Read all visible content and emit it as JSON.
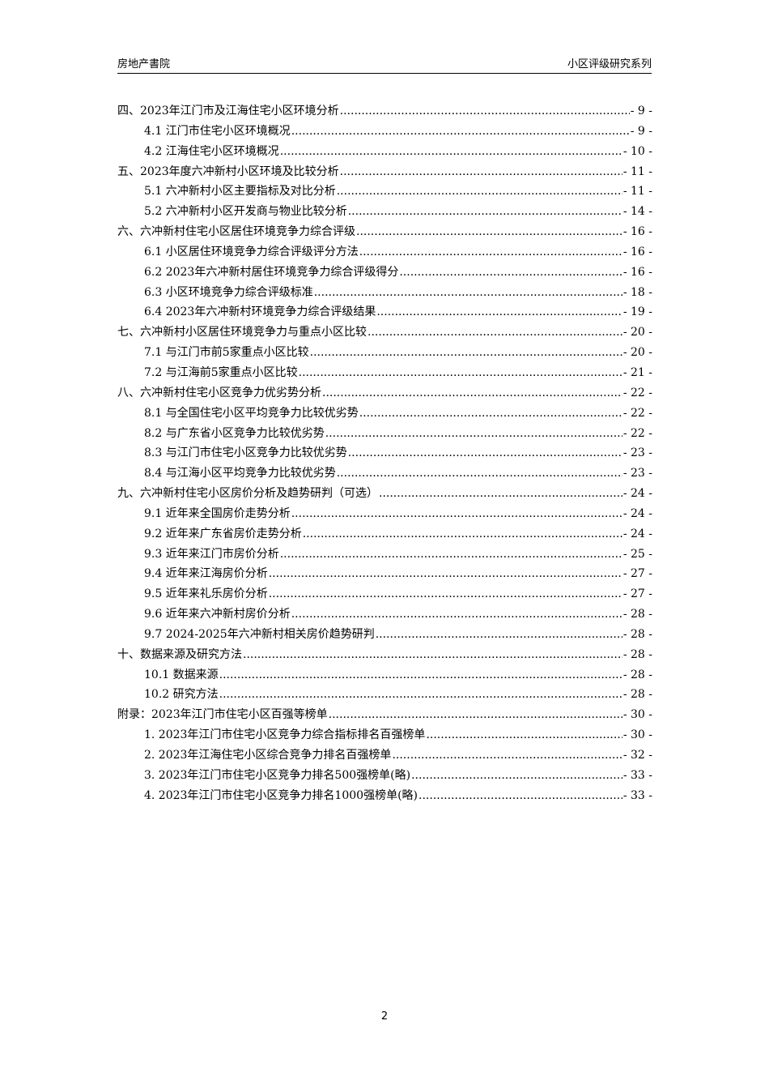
{
  "header": {
    "left": "房地产書院",
    "right": "小区评级研究系列"
  },
  "toc": [
    {
      "level": 1,
      "title": "四、2023年江门市及江海住宅小区环境分析",
      "page": "- 9 -"
    },
    {
      "level": 2,
      "title": "4.1 江门市住宅小区环境概况",
      "page": "- 9 -"
    },
    {
      "level": 2,
      "title": "4.2 江海住宅小区环境概况",
      "page": "- 10 -"
    },
    {
      "level": 1,
      "title": "五、2023年度六冲新村小区环境及比较分析",
      "page": "- 11 -"
    },
    {
      "level": 2,
      "title": "5.1 六冲新村小区主要指标及对比分析",
      "page": "- 11 -"
    },
    {
      "level": 2,
      "title": "5.2 六冲新村小区开发商与物业比较分析",
      "page": "- 14 -"
    },
    {
      "level": 1,
      "title": "六、六冲新村住宅小区居住环境竞争力综合评级",
      "page": "- 16 -"
    },
    {
      "level": 2,
      "title": "6.1 小区居住环境竞争力综合评级评分方法",
      "page": "- 16 -"
    },
    {
      "level": 2,
      "title": "6.2 2023年六冲新村居住环境竞争力综合评级得分",
      "page": "- 16 -"
    },
    {
      "level": 2,
      "title": "6.3 小区环境竞争力综合评级标准",
      "page": "- 18 -"
    },
    {
      "level": 2,
      "title": "6.4 2023年六冲新村环境竞争力综合评级结果",
      "page": "- 19 -"
    },
    {
      "level": 1,
      "title": "七、六冲新村小区居住环境竞争力与重点小区比较",
      "page": "- 20 -"
    },
    {
      "level": 2,
      "title": "7.1 与江门市前5家重点小区比较",
      "page": "- 20 -"
    },
    {
      "level": 2,
      "title": "7.2 与江海前5家重点小区比较",
      "page": "- 21 -"
    },
    {
      "level": 1,
      "title": "八、六冲新村住宅小区竞争力优劣势分析",
      "page": "- 22 -"
    },
    {
      "level": 2,
      "title": "8.1 与全国住宅小区平均竞争力比较优劣势",
      "page": "- 22 -"
    },
    {
      "level": 2,
      "title": "8.2 与广东省小区竞争力比较优劣势",
      "page": "- 22 -"
    },
    {
      "level": 2,
      "title": "8.3 与江门市住宅小区竞争力比较优劣势",
      "page": "- 23 -"
    },
    {
      "level": 2,
      "title": "8.4 与江海小区平均竞争力比较优劣势",
      "page": "- 23 -"
    },
    {
      "level": 1,
      "title": "九、六冲新村住宅小区房价分析及趋势研判（可选）",
      "page": "- 24 -"
    },
    {
      "level": 2,
      "title": "9.1 近年来全国房价走势分析",
      "page": "- 24 -"
    },
    {
      "level": 2,
      "title": "9.2 近年来广东省房价走势分析",
      "page": "- 24 -"
    },
    {
      "level": 2,
      "title": "9.3 近年来江门市房价分析",
      "page": "- 25 -"
    },
    {
      "level": 2,
      "title": "9.4 近年来江海房价分析",
      "page": "- 27 -"
    },
    {
      "level": 2,
      "title": "9.5 近年来礼乐房价分析",
      "page": "- 27 -"
    },
    {
      "level": 2,
      "title": "9.6 近年来六冲新村房价分析",
      "page": "- 28 -"
    },
    {
      "level": 2,
      "title": "9.7 2024-2025年六冲新村相关房价趋势研判",
      "page": "- 28 -"
    },
    {
      "level": 1,
      "title": "十、数据来源及研究方法",
      "page": "- 28 -"
    },
    {
      "level": 2,
      "title": "10.1 数据来源",
      "page": "- 28 -"
    },
    {
      "level": 2,
      "title": "10.2 研究方法",
      "page": "- 28 -"
    },
    {
      "level": 1,
      "title": "附录：2023年江门市住宅小区百强等榜单",
      "page": "- 30 -"
    },
    {
      "level": 2,
      "title": "1.  2023年江门市住宅小区竞争力综合指标排名百强榜单",
      "page": "- 30 -"
    },
    {
      "level": 2,
      "title": "2.  2023年江海住宅小区综合竞争力排名百强榜单",
      "page": "- 32 -"
    },
    {
      "level": 2,
      "title": "3.  2023年江门市住宅小区竞争力排名500强榜单(略)",
      "page": "- 33 -"
    },
    {
      "level": 2,
      "title": "4.  2023年江门市住宅小区竞争力排名1000强榜单(略)",
      "page": "- 33 -"
    }
  ],
  "footer": {
    "page_number": "2"
  }
}
